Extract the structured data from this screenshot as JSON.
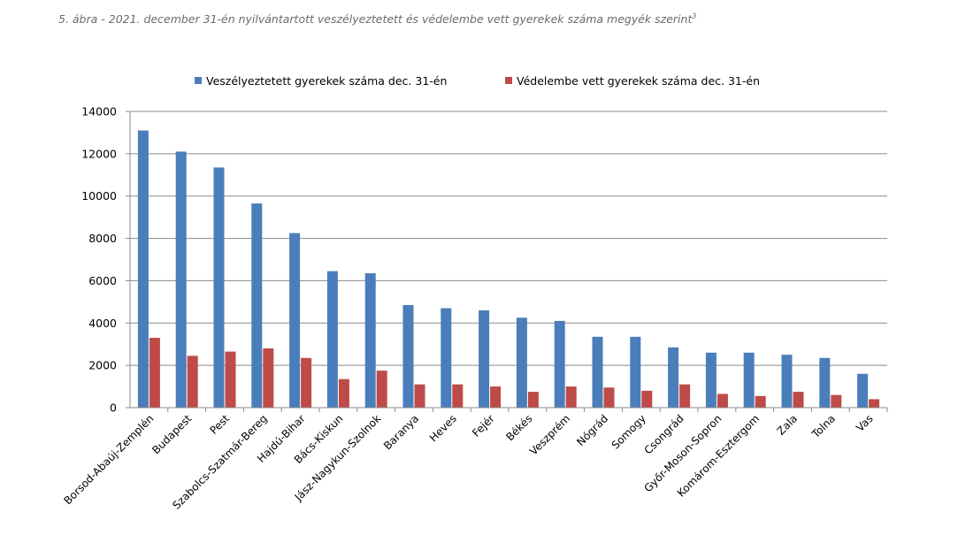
{
  "figure": {
    "caption": "5. ábra - 2021. december 31-én nyilvántartott veszélyeztetett és védelembe vett gyerekek száma megyék szerint",
    "footnote_marker": "3"
  },
  "chart_data": {
    "type": "bar",
    "title": "",
    "xlabel": "",
    "ylabel": "",
    "ylim": [
      0,
      14000
    ],
    "yticks": [
      0,
      2000,
      4000,
      6000,
      8000,
      10000,
      12000,
      14000
    ],
    "grid": "horizontal",
    "legend_position": "top",
    "categories": [
      "Borsod-Abaúj-Zemplén",
      "Budapest",
      "Pest",
      "Szabolcs-Szatmár-Bereg",
      "Hajdú-Bihar",
      "Bács-Kiskun",
      "Jász-Nagykun-Szolnok",
      "Baranya",
      "Heves",
      "Fejér",
      "Békés",
      "Veszprém",
      "Nógrád",
      "Somogy",
      "Csongrád",
      "Győr-Moson-Sopron",
      "Komárom-Esztergom",
      "Zala",
      "Tolna",
      "Vas"
    ],
    "series": [
      {
        "name": "Veszélyeztetett gyerekek száma dec. 31-én",
        "color": "#4a7ebb",
        "values": [
          13100,
          12100,
          11350,
          9650,
          8250,
          6450,
          6350,
          4850,
          4700,
          4600,
          4250,
          4100,
          3350,
          3350,
          2850,
          2600,
          2600,
          2500,
          2350,
          1600
        ]
      },
      {
        "name": "Védelembe vett gyerekek száma dec. 31-én",
        "color": "#be4b48",
        "values": [
          3300,
          2450,
          2650,
          2800,
          2350,
          1350,
          1750,
          1100,
          1100,
          1000,
          750,
          1000,
          950,
          800,
          1100,
          650,
          550,
          750,
          600,
          400
        ]
      }
    ]
  }
}
